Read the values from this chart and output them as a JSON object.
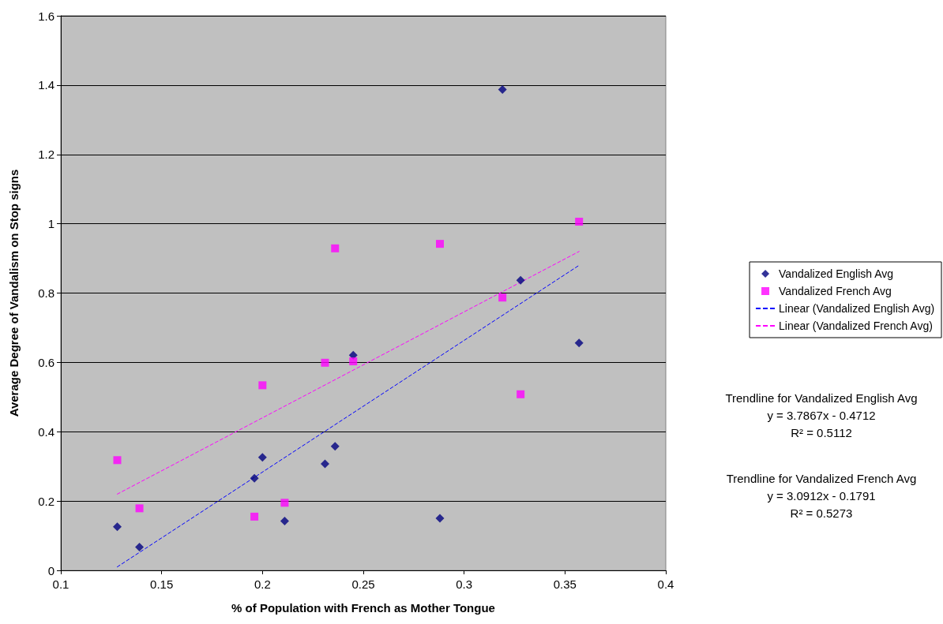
{
  "chart_data": {
    "type": "scatter",
    "xlabel": "% of Population with French as Mother Tongue",
    "ylabel": "Average Degree of Vandalism on Stop signs",
    "xlim": [
      0.1,
      0.4
    ],
    "xticks": [
      0.1,
      0.15,
      0.2,
      0.25,
      0.3,
      0.35,
      0.4
    ],
    "ylim": [
      0,
      1.6
    ],
    "yticks": [
      0,
      0.2,
      0.4,
      0.6,
      0.8,
      1,
      1.2,
      1.4,
      1.6
    ],
    "grid": "y",
    "legend": "right",
    "series": [
      {
        "name": "Vandalized English Avg",
        "marker": "diamond",
        "color": "#000080",
        "x": [
          0.128,
          0.139,
          0.196,
          0.2,
          0.211,
          0.231,
          0.236,
          0.245,
          0.288,
          0.319,
          0.328,
          0.357
        ],
        "values": [
          0.126,
          0.067,
          0.266,
          0.326,
          0.142,
          0.307,
          0.358,
          0.621,
          0.15,
          1.387,
          0.837,
          0.656
        ]
      },
      {
        "name": "Vandalized French Avg",
        "marker": "square",
        "color": "#ff00ff",
        "x": [
          0.128,
          0.139,
          0.196,
          0.2,
          0.211,
          0.231,
          0.236,
          0.245,
          0.288,
          0.319,
          0.328,
          0.357
        ],
        "values": [
          0.318,
          0.179,
          0.155,
          0.534,
          0.195,
          0.599,
          0.929,
          0.603,
          0.942,
          0.787,
          0.508,
          1.006
        ]
      },
      {
        "name": "Linear (Vandalized English Avg)",
        "type": "line",
        "marker": "none",
        "line_style": "dashed",
        "color": "#0000ff",
        "x": [
          0.128,
          0.357
        ],
        "values": [
          0.01,
          0.88
        ]
      },
      {
        "name": "Linear (Vandalized French Avg)",
        "type": "line",
        "marker": "none",
        "line_style": "dashed",
        "color": "#ff00ff",
        "x": [
          0.128,
          0.357
        ],
        "values": [
          0.22,
          0.92
        ]
      }
    ],
    "annotations": [
      "Trendline for Vandalized English Avg",
      "y = 3.7867x - 0.4712",
      "R² = 0.5112",
      "Trendline for Vandalized French Avg",
      "y = 3.0912x - 0.1791",
      "R² = 0.5273"
    ]
  }
}
